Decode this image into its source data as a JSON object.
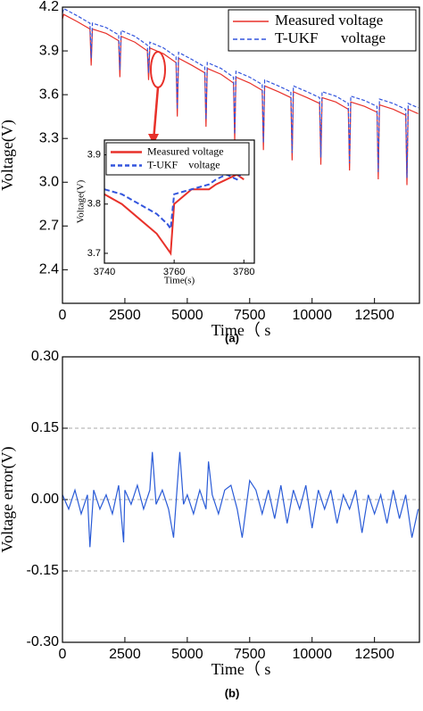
{
  "chart_data": [
    {
      "type": "line",
      "y_label": "Voltage(V)",
      "x_label": "Time（ s",
      "caption": "(a)",
      "xlim": [
        0,
        14300
      ],
      "ylim": [
        2.17,
        4.2
      ],
      "xticks": [
        0,
        2500,
        5000,
        7500,
        10000,
        12500
      ],
      "yticks": [
        2.4,
        2.7,
        {
          "value": 3,
          "label": "3.0"
        },
        3.3,
        3.6,
        3.9,
        4.2
      ],
      "grid": false,
      "legend": "upper right",
      "x": [
        0,
        50,
        600,
        1100,
        1150,
        1200,
        1750,
        2250,
        2300,
        2350,
        2900,
        3400,
        3450,
        3500,
        4050,
        4550,
        4600,
        4650,
        5200,
        5700,
        5750,
        5800,
        6350,
        6850,
        6900,
        6950,
        7500,
        8000,
        8050,
        8100,
        8650,
        9150,
        9200,
        9250,
        9800,
        10300,
        10350,
        10400,
        10950,
        11450,
        11500,
        11550,
        12100,
        12600,
        12650,
        12700,
        13250,
        13750,
        13800,
        13850,
        14250
      ],
      "series": [
        {
          "name": "Measured voltage",
          "color": "#e8312a",
          "dashed": false,
          "values": [
            4.12,
            4.15,
            4.1,
            4.05,
            3.8,
            4.05,
            4.02,
            3.97,
            3.72,
            4.0,
            3.96,
            3.9,
            3.7,
            3.92,
            3.88,
            3.82,
            3.45,
            3.85,
            3.8,
            3.75,
            3.38,
            3.78,
            3.74,
            3.68,
            3.28,
            3.72,
            3.68,
            3.63,
            3.22,
            3.66,
            3.62,
            3.58,
            3.15,
            3.62,
            3.58,
            3.54,
            3.12,
            3.58,
            3.55,
            3.5,
            3.08,
            3.55,
            3.52,
            3.48,
            3.02,
            3.53,
            3.5,
            3.46,
            2.98,
            3.5,
            3.47
          ]
        },
        {
          "name": "T-UKF      voltage",
          "color": "#3355dd",
          "dashed": true,
          "values": [
            4.16,
            4.19,
            4.14,
            4.09,
            3.85,
            4.09,
            4.06,
            4.01,
            3.77,
            4.04,
            4.0,
            3.94,
            3.75,
            3.96,
            3.92,
            3.86,
            3.5,
            3.89,
            3.84,
            3.79,
            3.43,
            3.82,
            3.78,
            3.72,
            3.33,
            3.76,
            3.72,
            3.67,
            3.27,
            3.7,
            3.66,
            3.62,
            3.2,
            3.66,
            3.62,
            3.58,
            3.17,
            3.62,
            3.59,
            3.54,
            3.13,
            3.59,
            3.56,
            3.52,
            3.07,
            3.57,
            3.54,
            3.5,
            3.03,
            3.54,
            3.51
          ]
        }
      ]
    },
    {
      "type": "line",
      "y_label": "Voltage(V)",
      "x_label": "Time(s)",
      "xlim": [
        3740,
        3783
      ],
      "ylim": [
        3.68,
        3.93
      ],
      "xticks": [
        3740,
        3760,
        3780
      ],
      "yticks": [
        3.7,
        3.8,
        3.9
      ],
      "grid": false,
      "legend": "upper left",
      "x": [
        3740,
        3745,
        3750,
        3755,
        3758,
        3759,
        3760,
        3765,
        3770,
        3772,
        3775,
        3778,
        3780
      ],
      "series": [
        {
          "name": "Measured voltage",
          "color": "#e8312a",
          "dashed": false,
          "values": [
            3.82,
            3.8,
            3.77,
            3.74,
            3.71,
            3.7,
            3.8,
            3.83,
            3.83,
            3.84,
            3.85,
            3.86,
            3.85
          ]
        },
        {
          "name": "T-UKF    voltage",
          "color": "#3355dd",
          "dashed": true,
          "values": [
            3.83,
            3.82,
            3.8,
            3.78,
            3.76,
            3.75,
            3.82,
            3.83,
            3.84,
            3.85,
            3.86,
            3.85,
            3.87
          ]
        }
      ]
    },
    {
      "type": "line",
      "y_label": "Voltage error(V)",
      "x_label": "Time（ s",
      "caption": "(b)",
      "xlim": [
        0,
        14300
      ],
      "ylim": [
        -0.3,
        0.3
      ],
      "xticks": [
        0,
        2500,
        5000,
        7500,
        10000,
        12500
      ],
      "yticks": [
        {
          "value": -0.3,
          "label": "-0.30"
        },
        -0.15,
        {
          "value": 0,
          "label": "0.00"
        },
        0.15,
        {
          "value": 0.3,
          "label": "0.30"
        }
      ],
      "grid": true,
      "x": [
        0,
        250,
        500,
        750,
        1000,
        1100,
        1250,
        1500,
        1750,
        2000,
        2250,
        2450,
        2500,
        2750,
        3000,
        3250,
        3500,
        3600,
        3750,
        4000,
        4250,
        4450,
        4600,
        4700,
        4850,
        5000,
        5250,
        5500,
        5750,
        5850,
        6000,
        6250,
        6500,
        6750,
        7000,
        7200,
        7500,
        7750,
        8000,
        8250,
        8500,
        8750,
        9000,
        9250,
        9500,
        9750,
        10000,
        10250,
        10500,
        10750,
        11000,
        11250,
        11500,
        11750,
        12000,
        12250,
        12500,
        12750,
        13000,
        13250,
        13500,
        13750,
        14000,
        14250
      ],
      "series": [
        {
          "color": "#2a5bd7",
          "dashed": false,
          "values": [
            0.01,
            -0.02,
            0.02,
            -0.03,
            0.01,
            -0.1,
            0.02,
            -0.02,
            0.01,
            -0.03,
            0.03,
            -0.09,
            0.02,
            -0.01,
            0.03,
            -0.02,
            0.02,
            0.1,
            -0.01,
            0.02,
            -0.02,
            -0.08,
            0.03,
            0.1,
            -0.01,
            0.01,
            -0.03,
            0.02,
            -0.02,
            0.08,
            0.01,
            -0.03,
            0.02,
            0.03,
            -0.02,
            -0.08,
            0.04,
            0.02,
            -0.03,
            0.02,
            -0.04,
            0.03,
            -0.05,
            0.02,
            -0.02,
            0.03,
            -0.06,
            0.02,
            -0.02,
            0.02,
            -0.05,
            0.01,
            -0.02,
            0.02,
            -0.07,
            0.01,
            -0.03,
            0.01,
            -0.05,
            0.02,
            -0.04,
            0.01,
            -0.08,
            -0.02
          ]
        }
      ]
    }
  ]
}
